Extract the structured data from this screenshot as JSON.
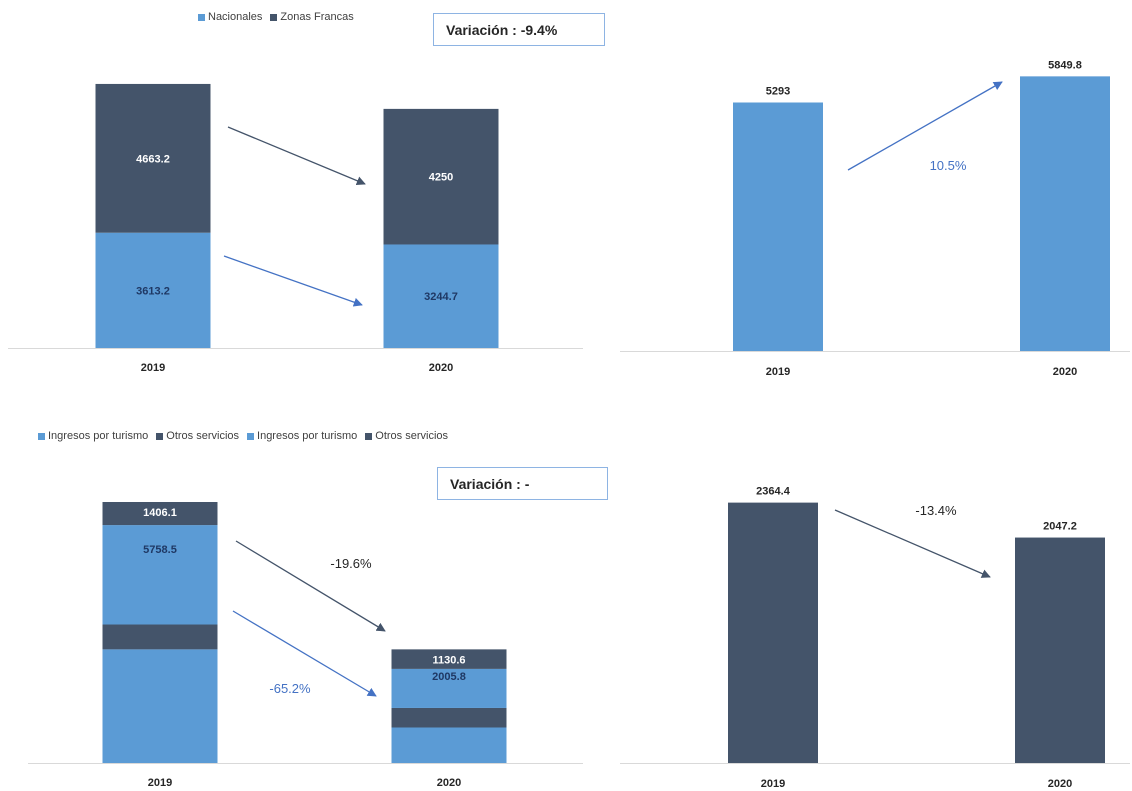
{
  "colors": {
    "light": "#5b9bd5",
    "dark": "#44546a",
    "axis": "#d9d9d9",
    "arrow_blue": "#4472c4",
    "arrow_dark": "#44546a"
  },
  "chart_data": [
    {
      "type": "bar",
      "stacked": true,
      "categories": [
        "2019",
        "2020"
      ],
      "series": [
        {
          "name": "Nacionales",
          "values": [
            3613.2,
            3244.7
          ],
          "color": "#5b9bd5",
          "labels": [
            "3613.2",
            "3244.7"
          ]
        },
        {
          "name": "Zonas Francas",
          "values": [
            4663.2,
            4250
          ],
          "color": "#44546a",
          "labels": [
            "4663.2",
            "4250"
          ]
        }
      ],
      "ylim": [
        0,
        8400
      ],
      "variation_label": "Variación : -9.4%",
      "legend_position": "top"
    },
    {
      "type": "bar",
      "categories": [
        "2019",
        "2020"
      ],
      "series": [
        {
          "values": [
            5293,
            5849.8
          ],
          "color": "#5b9bd5",
          "labels": [
            "5293",
            "5849.8"
          ]
        }
      ],
      "ylim": [
        0,
        5900
      ],
      "annotations": [
        {
          "text": "10.5%"
        }
      ]
    },
    {
      "type": "bar",
      "stacked": true,
      "categories": [
        "2019",
        "2020"
      ],
      "series": [
        {
          "name": "Ingresos por turismo",
          "values": [
            3200,
            1000
          ],
          "color": "#5b9bd5"
        },
        {
          "name": "Otros servicios",
          "values": [
            700,
            550
          ],
          "color": "#44546a"
        },
        {
          "name": "Ingresos por turismo",
          "values": [
            2800,
            1100
          ],
          "color": "#5b9bd5",
          "labels": [
            "5758.5",
            "2005.8"
          ]
        },
        {
          "name": "Otros servicios",
          "values": [
            650,
            550
          ],
          "color": "#44546a",
          "labels": [
            "1406.1",
            "1130.6"
          ]
        }
      ],
      "ylim": [
        0,
        7350
      ],
      "variation_label": "Variación : -",
      "legend_position": "top",
      "annotations": [
        {
          "text": "-19.6%"
        },
        {
          "text": "-65.2%"
        }
      ]
    },
    {
      "type": "bar",
      "categories": [
        "2019",
        "2020"
      ],
      "series": [
        {
          "values": [
            2364.4,
            2047.2
          ],
          "color": "#44546a",
          "labels": [
            "2364.4",
            "2047.2"
          ]
        }
      ],
      "ylim": [
        0,
        2370
      ],
      "annotations": [
        {
          "text": "-13.4%"
        }
      ]
    }
  ]
}
